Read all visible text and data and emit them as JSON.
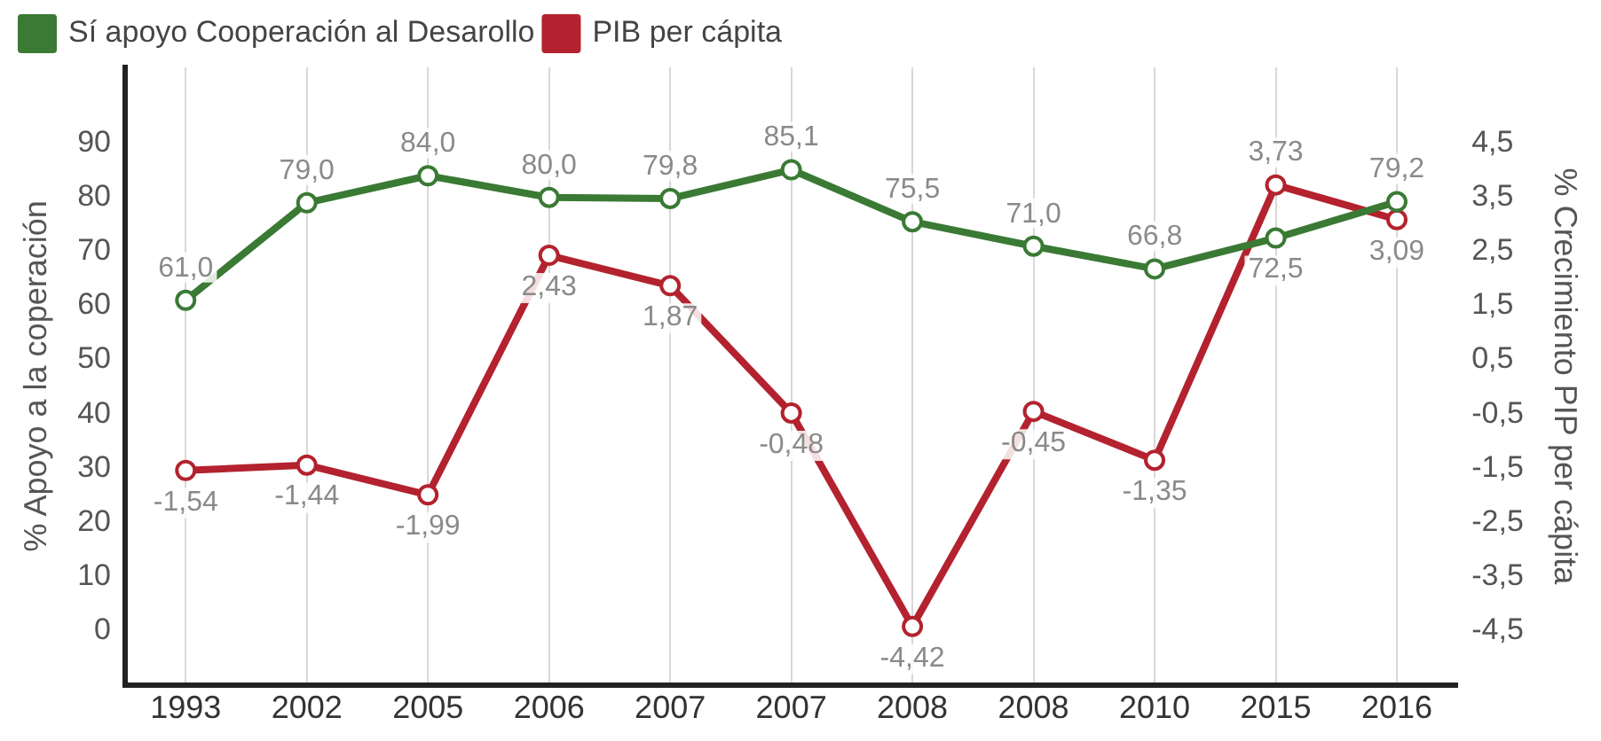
{
  "chart_data": {
    "type": "line",
    "ylabel": "% Apoyo a la coperación",
    "y2label": "% Crecimiento PIP per cápita",
    "categories": [
      "1993",
      "2002",
      "2005",
      "2006",
      "2007",
      "2007",
      "2008",
      "2008",
      "2010",
      "2015",
      "2016"
    ],
    "series": [
      {
        "name": "Sí apoyo Cooperación al Desarollo",
        "color": "#3a7a34",
        "values": [
          61.0,
          79.0,
          84.0,
          80.0,
          79.8,
          85.1,
          75.5,
          71.0,
          66.8,
          72.5,
          79.2
        ],
        "value_labels": [
          "61,0",
          "79,0",
          "84,0",
          "80,0",
          "79,8",
          "85,1",
          "75,5",
          "71,0",
          "66,8",
          "72,5",
          "79,2"
        ]
      },
      {
        "name": "PIB per cápita",
        "color": "#b3222e",
        "axis": "y2",
        "values": [
          -1.54,
          -1.44,
          -1.99,
          2.43,
          1.87,
          -0.48,
          -4.42,
          -0.45,
          -1.35,
          3.73,
          3.09
        ],
        "value_labels": [
          "-1,54",
          "-1,44",
          "-1,99",
          "2,43",
          "1,87",
          "-0,48",
          "-4,42",
          "-0,45",
          "-1,35",
          "3,73",
          "3,09"
        ]
      }
    ],
    "ylim": [
      -10,
      104
    ],
    "yticks": [
      0,
      10,
      20,
      30,
      40,
      50,
      60,
      70,
      80,
      90
    ],
    "y2lim": [
      -5.5,
      5.9
    ],
    "y2ticks": [
      {
        "value": 4.5,
        "label": "4,5"
      },
      {
        "value": 3.5,
        "label": "3,5"
      },
      {
        "value": 2.5,
        "label": "2,5"
      },
      {
        "value": 1.5,
        "label": "1,5"
      },
      {
        "value": 0.5,
        "label": "0,5"
      },
      {
        "value": -0.5,
        "label": "-0,5"
      },
      {
        "value": -1.5,
        "label": "-1,5"
      },
      {
        "value": -2.5,
        "label": "-2,5"
      },
      {
        "value": -3.5,
        "label": "-3,5"
      },
      {
        "value": -4.5,
        "label": "-4,5"
      }
    ],
    "grid": "x",
    "legend": "top left",
    "marker": "circle",
    "line_style": "solid"
  }
}
